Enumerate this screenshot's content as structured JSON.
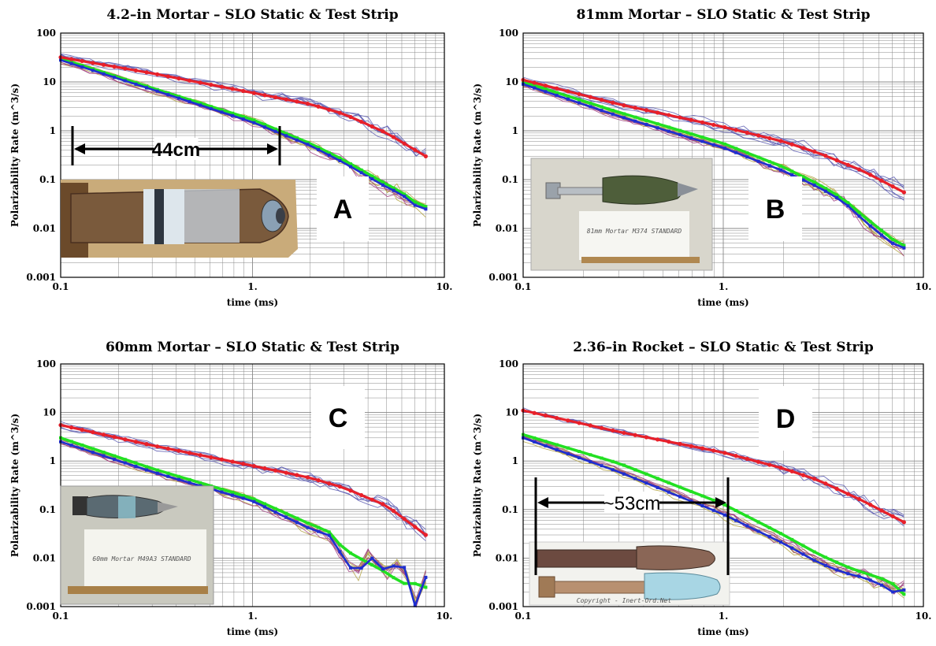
{
  "colors": {
    "static_red": "#e8202a",
    "test_blue": "#1f2fd0",
    "test_green": "#22e022",
    "thin_blue": "#5a5ab0",
    "thin_olive": "#b0a040",
    "thin_purple": "#a04080",
    "grid": "#888888"
  },
  "chart_data": [
    {
      "type": "line",
      "title": "4.2–in Mortar – SLO Static & Test Strip",
      "xlabel": "time (ms)",
      "ylabel": "Polarizability Rate (m^3/s)",
      "xscale": "log",
      "yscale": "log",
      "xlim": [
        0.1,
        10
      ],
      "ylim": [
        0.001,
        100
      ],
      "xticks": [
        "0.1",
        "1.",
        "10."
      ],
      "yticks": [
        "0.001",
        "0.01",
        "0.1",
        "1",
        "10",
        "100"
      ],
      "grid": true,
      "panel_label": "A",
      "photo_annotation": "44cm",
      "series": [
        {
          "color": "#e8202a",
          "x": [
            0.1,
            0.3,
            1,
            2,
            3,
            5,
            8
          ],
          "values": [
            32,
            15,
            6,
            3.5,
            2.2,
            0.9,
            0.3
          ]
        },
        {
          "color": "#1f2fd0",
          "x": [
            0.1,
            0.3,
            1,
            2,
            3,
            5,
            6,
            7,
            8
          ],
          "values": [
            28,
            7,
            1.5,
            0.5,
            0.22,
            0.07,
            0.05,
            0.03,
            0.025
          ]
        },
        {
          "color": "#22e022",
          "x": [
            0.1,
            0.3,
            1,
            2,
            3,
            5,
            6,
            7,
            8
          ],
          "values": [
            30,
            7.5,
            1.7,
            0.55,
            0.25,
            0.08,
            0.055,
            0.035,
            0.028
          ]
        }
      ]
    },
    {
      "type": "line",
      "title": "81mm Mortar – SLO Static & Test Strip",
      "xlabel": "time (ms)",
      "ylabel": "Polarizability Rate (m^3/s)",
      "xscale": "log",
      "yscale": "log",
      "xlim": [
        0.1,
        10
      ],
      "ylim": [
        0.001,
        100
      ],
      "xticks": [
        "0.1",
        "1.",
        "10."
      ],
      "yticks": [
        "0.001",
        "0.01",
        "0.1",
        "1",
        "10",
        "100"
      ],
      "grid": true,
      "panel_label": "B",
      "photo_annotation": "81mm Mortar M374 STANDARD",
      "series": [
        {
          "color": "#e8202a",
          "x": [
            0.1,
            0.3,
            1,
            2,
            3,
            5,
            8
          ],
          "values": [
            11,
            3.5,
            1.2,
            0.6,
            0.35,
            0.15,
            0.055
          ]
        },
        {
          "color": "#1f2fd0",
          "x": [
            0.1,
            0.3,
            1,
            2,
            3,
            4,
            5,
            6,
            7,
            8
          ],
          "values": [
            9,
            2,
            0.45,
            0.15,
            0.07,
            0.035,
            0.015,
            0.008,
            0.005,
            0.004
          ]
        },
        {
          "color": "#22e022",
          "x": [
            0.1,
            0.3,
            1,
            2,
            3,
            4,
            5,
            6,
            7,
            8
          ],
          "values": [
            10,
            2.4,
            0.55,
            0.18,
            0.08,
            0.04,
            0.018,
            0.01,
            0.006,
            0.0045
          ]
        }
      ]
    },
    {
      "type": "line",
      "title": "60mm Mortar – SLO Static & Test Strip",
      "xlabel": "time (ms)",
      "ylabel": "Polarizability Rate (m^3/s)",
      "xscale": "log",
      "yscale": "log",
      "xlim": [
        0.1,
        10
      ],
      "ylim": [
        0.001,
        100
      ],
      "xticks": [
        "0.1",
        "1.",
        "10."
      ],
      "yticks": [
        "0.001",
        "0.01",
        "0.1",
        "1",
        "10",
        "100"
      ],
      "grid": true,
      "panel_label": "C",
      "photo_annotation": "60mm Mortar M49A3 STANDARD",
      "series": [
        {
          "color": "#e8202a",
          "x": [
            0.1,
            0.3,
            1,
            2,
            3,
            5,
            8
          ],
          "values": [
            5.5,
            2.1,
            0.8,
            0.45,
            0.28,
            0.12,
            0.03
          ]
        },
        {
          "color": "#1f2fd0",
          "x": [
            0.1,
            0.3,
            1,
            2,
            2.5,
            3,
            3.5,
            4,
            5,
            6,
            7,
            8
          ],
          "values": [
            2.5,
            0.6,
            0.15,
            0.04,
            0.03,
            0.01,
            0.004,
            0.012,
            0.005,
            0.01,
            0.001,
            0.004
          ]
        },
        {
          "color": "#22e022",
          "x": [
            0.1,
            0.3,
            1,
            2,
            2.5,
            3,
            4,
            5,
            6,
            7,
            8
          ],
          "values": [
            3,
            0.7,
            0.17,
            0.05,
            0.035,
            0.015,
            0.008,
            0.005,
            0.003,
            0.003,
            0.0025
          ]
        }
      ]
    },
    {
      "type": "line",
      "title": "2.36–in Rocket – SLO Static & Test Strip",
      "xlabel": "time (ms)",
      "ylabel": "Polarizability Rate (m^3/s)",
      "xscale": "log",
      "yscale": "log",
      "xlim": [
        0.1,
        10
      ],
      "ylim": [
        0.001,
        100
      ],
      "xticks": [
        "0.1",
        "1.",
        "10."
      ],
      "yticks": [
        "0.001",
        "0.01",
        "0.1",
        "1",
        "10",
        "100"
      ],
      "grid": true,
      "panel_label": "D",
      "photo_annotation": "~53cm",
      "photo_caption": "Copyright - Inert-Ord.Net",
      "series": [
        {
          "color": "#e8202a",
          "x": [
            0.1,
            0.3,
            1,
            2,
            3,
            5,
            8
          ],
          "values": [
            11,
            4,
            1.5,
            0.7,
            0.4,
            0.15,
            0.055
          ]
        },
        {
          "color": "#1f2fd0",
          "x": [
            0.1,
            0.3,
            1,
            2,
            3,
            4,
            5,
            6,
            7,
            8
          ],
          "values": [
            3,
            0.6,
            0.08,
            0.02,
            0.008,
            0.005,
            0.004,
            0.003,
            0.002,
            0.0022
          ]
        },
        {
          "color": "#22e022",
          "x": [
            0.1,
            0.3,
            1,
            2,
            3,
            4,
            5,
            6,
            7,
            8
          ],
          "values": [
            3.5,
            0.9,
            0.13,
            0.03,
            0.012,
            0.007,
            0.005,
            0.004,
            0.003,
            0.0018
          ]
        }
      ]
    }
  ]
}
